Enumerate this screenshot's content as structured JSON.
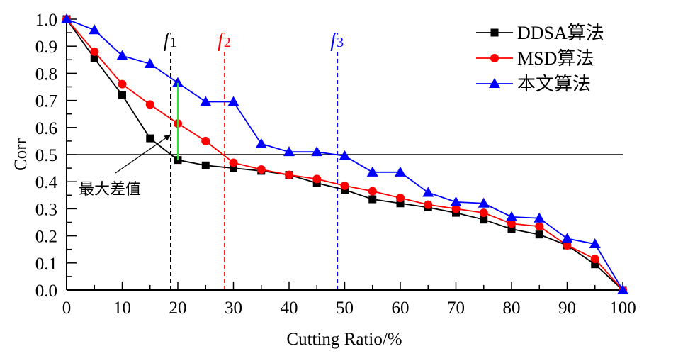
{
  "chart_data": {
    "type": "line",
    "title": "",
    "xlabel": "Cutting Ratio/%",
    "ylabel": "Corr",
    "xlim": [
      0,
      100
    ],
    "ylim": [
      0,
      1.0
    ],
    "x_ticks": [
      "0",
      "10",
      "20",
      "30",
      "40",
      "50",
      "60",
      "70",
      "80",
      "90",
      "100"
    ],
    "y_ticks": [
      "0.0",
      "0.1",
      "0.2",
      "0.3",
      "0.4",
      "0.5",
      "0.6",
      "0.7",
      "0.8",
      "0.9",
      "1.0"
    ],
    "grid": false,
    "legend_position": "top-right",
    "x": [
      0,
      5,
      10,
      15,
      20,
      25,
      30,
      35,
      40,
      45,
      50,
      55,
      60,
      65,
      70,
      75,
      80,
      85,
      90,
      95,
      100
    ],
    "series": [
      {
        "name": "DDSA算法",
        "color": "#000000",
        "marker": "square",
        "values": [
          1.0,
          0.855,
          0.72,
          0.56,
          0.48,
          0.46,
          0.45,
          0.44,
          0.425,
          0.395,
          0.37,
          0.335,
          0.32,
          0.305,
          0.285,
          0.26,
          0.225,
          0.205,
          0.165,
          0.095,
          0.0
        ]
      },
      {
        "name": "MSD算法",
        "color": "#ff0000",
        "marker": "circle",
        "values": [
          1.0,
          0.88,
          0.76,
          0.685,
          0.615,
          0.55,
          0.47,
          0.445,
          0.425,
          0.41,
          0.385,
          0.365,
          0.34,
          0.315,
          0.3,
          0.285,
          0.245,
          0.235,
          0.165,
          0.115,
          0.0
        ]
      },
      {
        "name": "本文算法",
        "color": "#0000ff",
        "marker": "triangle",
        "values": [
          1.0,
          0.96,
          0.865,
          0.835,
          0.765,
          0.695,
          0.695,
          0.54,
          0.51,
          0.51,
          0.495,
          0.435,
          0.435,
          0.36,
          0.325,
          0.32,
          0.27,
          0.265,
          0.19,
          0.17,
          0.0
        ]
      }
    ],
    "reference_lines": {
      "horizontal": {
        "y": 0.5,
        "color": "#000000"
      },
      "vertical": [
        {
          "label": "f",
          "subscript": "1",
          "x": 18.7,
          "color": "#000000"
        },
        {
          "label": "f",
          "subscript": "2",
          "x": 28.4,
          "color": "#ff0000"
        },
        {
          "label": "f",
          "subscript": "3",
          "x": 48.7,
          "color": "#0000ff"
        }
      ]
    },
    "annotations": [
      {
        "text": "最大差值",
        "type": "arrow",
        "arrow_target": {
          "x": 19.5,
          "y": 0.6
        },
        "difference_segment": {
          "x": 20,
          "y_from": 0.48,
          "y_to": 0.765,
          "color": "#33dd33"
        }
      }
    ]
  }
}
